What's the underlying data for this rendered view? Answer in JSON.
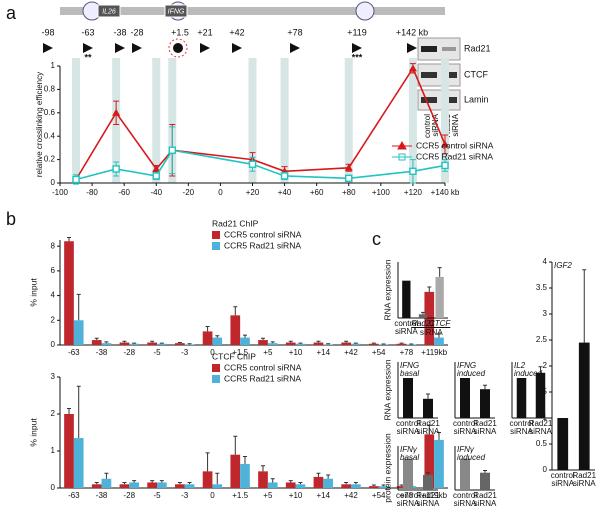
{
  "panels": [
    "a",
    "b",
    "c"
  ],
  "gene_map": {
    "genes": [
      "IL26",
      "IFNG"
    ],
    "sites": [
      "-98",
      "-63",
      "-38",
      "-28",
      "+1.5",
      "+21",
      "+42",
      "+78",
      "+119",
      "+142 kb"
    ]
  },
  "western": {
    "proteins": [
      "Rad21",
      "CTCF",
      "Lamin"
    ],
    "lanes": [
      "control siRNA",
      "Rad21 siRNA"
    ]
  },
  "chart_data": [
    {
      "type": "line",
      "ylabel": "relative crosslinking efficiency",
      "annotations": [
        "**",
        "***"
      ],
      "x": [
        -90,
        -65,
        -40,
        -30,
        20,
        40,
        80,
        120,
        140
      ],
      "series": [
        {
          "name": "CCR5 control siRNA",
          "color": "#d7191c",
          "marker": "triangle",
          "values": [
            0.03,
            0.6,
            0.12,
            0.28,
            0.2,
            0.1,
            0.13,
            0.98,
            0.33
          ],
          "errors": [
            0.02,
            0.1,
            0.03,
            0.22,
            0.06,
            0.04,
            0.03,
            0.04,
            0.08
          ]
        },
        {
          "name": "CCR5 Rad21 siRNA",
          "color": "#22c3c3",
          "marker": "square",
          "values": [
            0.03,
            0.12,
            0.06,
            0.28,
            0.16,
            0.06,
            0.04,
            0.1,
            0.15
          ],
          "errors": [
            0.04,
            0.06,
            0.03,
            0.2,
            0.06,
            0.03,
            0.02,
            0.1,
            0.05
          ]
        }
      ],
      "xlim": [
        -100,
        140
      ],
      "xticks": [
        -100,
        -80,
        -60,
        -40,
        -20,
        0,
        {
          "value": 20,
          "label": "+20"
        },
        {
          "value": 40,
          "label": "+40"
        },
        {
          "value": 60,
          "label": "+60"
        },
        {
          "value": 80,
          "label": "+80"
        },
        {
          "value": 100,
          "label": "+100"
        },
        {
          "value": 120,
          "label": "+120"
        },
        {
          "value": 140,
          "label": "+140 kb"
        }
      ],
      "ylim": [
        0,
        1
      ],
      "yticks": [
        0,
        0.2,
        0.4,
        0.6,
        0.8,
        1
      ]
    },
    {
      "type": "bar",
      "title": "Rad21 ChIP",
      "ylabel": "% input",
      "categories": [
        "-63",
        "-38",
        "-28",
        "-5",
        "-3",
        "0",
        "+1.5",
        "+5",
        "+10",
        "+14",
        "+42",
        "+54",
        "+78",
        "+119kb"
      ],
      "series": [
        {
          "name": "CCR5 control siRNA",
          "color": "#c0272d",
          "values": [
            8.4,
            0.4,
            0.2,
            0.2,
            0.15,
            1.1,
            2.4,
            0.4,
            0.2,
            0.2,
            0.2,
            0.1,
            0.1,
            4.3
          ],
          "errors": [
            0.3,
            0.15,
            0.1,
            0.1,
            0.05,
            0.4,
            0.7,
            0.15,
            0.1,
            0.1,
            0.1,
            0.05,
            0.05,
            0.4
          ]
        },
        {
          "name": "CCR5 Rad21 siRNA",
          "color": "#4fb3d9",
          "values": [
            2.0,
            0.15,
            0.1,
            0.1,
            0.05,
            0.6,
            0.6,
            0.15,
            0.1,
            0.05,
            0.1,
            0.05,
            0.05,
            0.6
          ],
          "errors": [
            2.1,
            0.1,
            0.05,
            0.05,
            0.05,
            0.15,
            0.2,
            0.1,
            0.05,
            0.05,
            0.05,
            0.03,
            0.03,
            0.3
          ]
        }
      ],
      "ylim": [
        0,
        8.5
      ],
      "yticks": [
        0,
        2,
        4,
        6,
        8
      ]
    },
    {
      "type": "bar",
      "title": "CTCF ChIP",
      "ylabel": "% input",
      "categories": [
        "-63",
        "-38",
        "-28",
        "-5",
        "-3",
        "0",
        "+1.5",
        "+5",
        "+10",
        "+14",
        "+42",
        "+54",
        "+78",
        "+119kb"
      ],
      "series": [
        {
          "name": "CCR5 control siRNA",
          "color": "#c0272d",
          "values": [
            2.0,
            0.1,
            0.1,
            0.15,
            0.1,
            0.45,
            0.9,
            0.45,
            0.15,
            0.3,
            0.1,
            0.05,
            0.05,
            1.45
          ],
          "errors": [
            0.15,
            0.05,
            0.05,
            0.05,
            0.05,
            0.5,
            0.5,
            0.15,
            0.05,
            0.1,
            0.05,
            0.03,
            0.03,
            0.25
          ]
        },
        {
          "name": "CCR5 Rad21 siRNA",
          "color": "#4fb3d9",
          "values": [
            1.35,
            0.25,
            0.15,
            0.15,
            0.1,
            0.1,
            0.65,
            0.15,
            0.1,
            0.25,
            0.1,
            0.05,
            0.05,
            1.3
          ],
          "errors": [
            1.4,
            0.15,
            0.05,
            0.05,
            0.05,
            0.3,
            0.2,
            0.1,
            0.05,
            0.1,
            0.05,
            0.03,
            0.03,
            0.2
          ]
        }
      ],
      "ylim": [
        0,
        3
      ],
      "yticks": [
        0,
        1,
        2,
        3
      ]
    },
    {
      "type": "bar",
      "ylabel": "RNA expression",
      "xlabel": "siRNA",
      "categories": [
        "control siRNA",
        "Rad21",
        "CTCF"
      ],
      "values": [
        1,
        0.1,
        1.1
      ],
      "errors": [
        0,
        0.05,
        0.25
      ],
      "colors": [
        "#111111",
        "#666666",
        "#aaaaaa"
      ],
      "ylim": [
        0,
        1.5
      ]
    },
    {
      "type": "bar",
      "title": "IGF2",
      "categories": [
        "control siRNA",
        "Rad21 siRNA"
      ],
      "values": [
        1,
        2.45
      ],
      "errors": [
        0,
        1.4
      ],
      "colors": [
        "#111111",
        "#111111"
      ],
      "ylim": [
        0,
        4
      ],
      "yticks": [
        0,
        0.5,
        1,
        1.5,
        2,
        2.5,
        3,
        3.5,
        4
      ]
    },
    {
      "type": "bar",
      "title": "IFNG basal",
      "ylabel": "RNA expression",
      "categories": [
        "control siRNA",
        "Rad21 siRNA"
      ],
      "values": [
        1,
        0.48
      ],
      "errors": [
        0,
        0.12
      ],
      "colors": [
        "#111111",
        "#111111"
      ],
      "ylim": [
        0,
        1.4
      ]
    },
    {
      "type": "bar",
      "title": "IFNG induced",
      "categories": [
        "control siRNA",
        "Rad21 siRNA"
      ],
      "values": [
        1,
        0.72
      ],
      "errors": [
        0,
        0.1
      ],
      "colors": [
        "#111111",
        "#111111"
      ],
      "ylim": [
        0,
        1.4
      ]
    },
    {
      "type": "bar",
      "title": "IL2 induced",
      "categories": [
        "control siRNA",
        "Rad21 siRNA"
      ],
      "values": [
        1,
        1.13
      ],
      "errors": [
        0,
        0.15
      ],
      "colors": [
        "#111111",
        "#111111"
      ],
      "ylim": [
        0,
        1.4
      ]
    },
    {
      "type": "bar",
      "title": "IFNγ basal",
      "ylabel": "protein expression",
      "categories": [
        "control siRNA",
        "Rad21 siRNA"
      ],
      "values": [
        1,
        0.48
      ],
      "errors": [
        0,
        0.08
      ],
      "colors": [
        "#888888",
        "#666666"
      ],
      "ylim": [
        0,
        1.4
      ]
    },
    {
      "type": "bar",
      "title": "IFNγ induced",
      "categories": [
        "control siRNA",
        "Rad21 siRNA"
      ],
      "values": [
        1,
        0.55
      ],
      "errors": [
        0,
        0.07
      ],
      "colors": [
        "#888888",
        "#666666"
      ],
      "ylim": [
        0,
        1.4
      ]
    }
  ]
}
